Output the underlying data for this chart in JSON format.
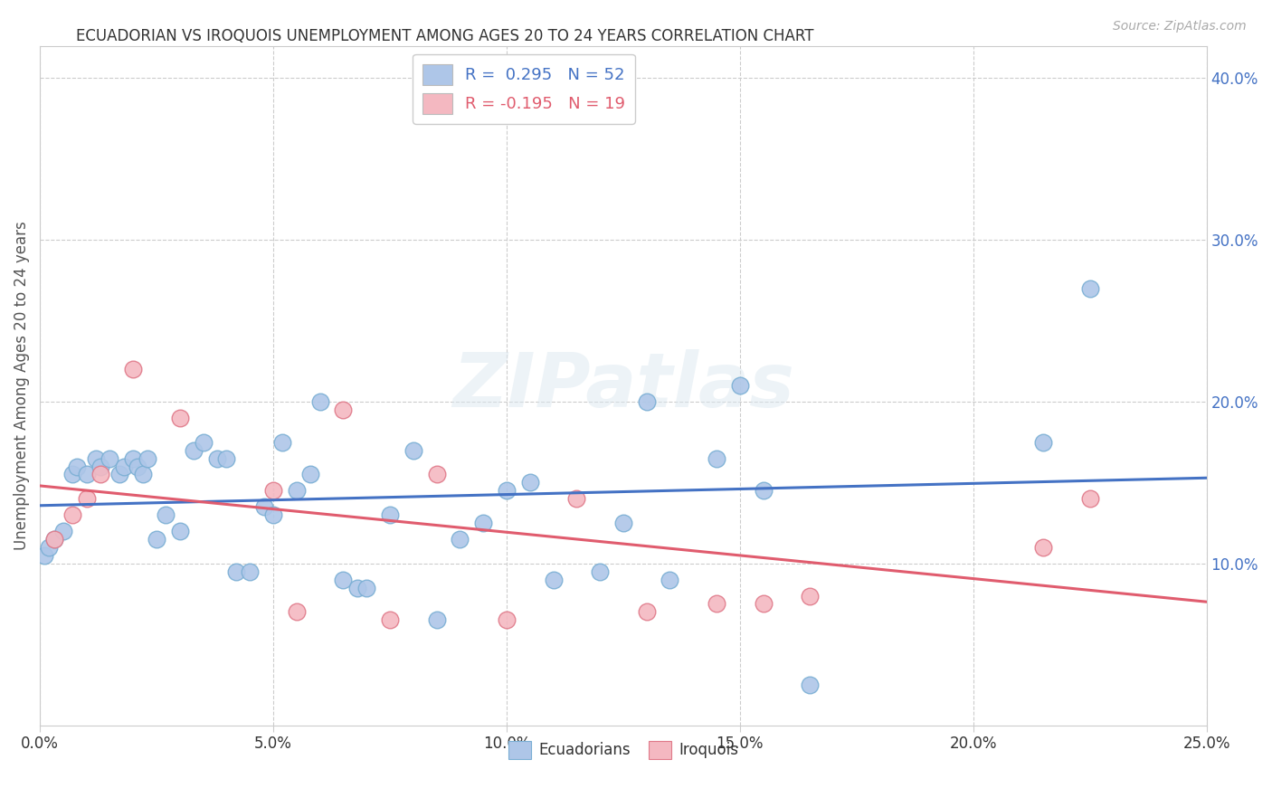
{
  "title": "ECUADORIAN VS IROQUOIS UNEMPLOYMENT AMONG AGES 20 TO 24 YEARS CORRELATION CHART",
  "source": "Source: ZipAtlas.com",
  "ylabel": "Unemployment Among Ages 20 to 24 years",
  "xlim": [
    0.0,
    0.25
  ],
  "ylim": [
    0.0,
    0.42
  ],
  "x_ticks": [
    0.0,
    0.05,
    0.1,
    0.15,
    0.2,
    0.25
  ],
  "x_tick_labels": [
    "0.0%",
    "5.0%",
    "10.0%",
    "15.0%",
    "20.0%",
    "25.0%"
  ],
  "y_ticks_right": [
    0.1,
    0.2,
    0.3,
    0.4
  ],
  "y_tick_labels_right": [
    "10.0%",
    "20.0%",
    "30.0%",
    "40.0%"
  ],
  "legend_entries": [
    {
      "label": "R =  0.295   N = 52",
      "facecolor": "#aec6e8",
      "text_color": "#4472c4"
    },
    {
      "label": "R = -0.195   N = 19",
      "facecolor": "#f4b8c1",
      "text_color": "#e05c6e"
    }
  ],
  "ecuadorians": {
    "facecolor": "#aec6e8",
    "edgecolor": "#7bafd4",
    "line_color": "#4472c4",
    "x": [
      0.001,
      0.002,
      0.003,
      0.005,
      0.007,
      0.008,
      0.01,
      0.012,
      0.013,
      0.015,
      0.017,
      0.018,
      0.02,
      0.021,
      0.022,
      0.023,
      0.025,
      0.027,
      0.03,
      0.033,
      0.035,
      0.038,
      0.04,
      0.042,
      0.045,
      0.048,
      0.05,
      0.052,
      0.055,
      0.058,
      0.06,
      0.065,
      0.068,
      0.07,
      0.075,
      0.08,
      0.085,
      0.09,
      0.095,
      0.1,
      0.105,
      0.11,
      0.12,
      0.125,
      0.13,
      0.135,
      0.145,
      0.15,
      0.155,
      0.165,
      0.215,
      0.225
    ],
    "y": [
      0.105,
      0.11,
      0.115,
      0.12,
      0.155,
      0.16,
      0.155,
      0.165,
      0.16,
      0.165,
      0.155,
      0.16,
      0.165,
      0.16,
      0.155,
      0.165,
      0.115,
      0.13,
      0.12,
      0.17,
      0.175,
      0.165,
      0.165,
      0.095,
      0.095,
      0.135,
      0.13,
      0.175,
      0.145,
      0.155,
      0.2,
      0.09,
      0.085,
      0.085,
      0.13,
      0.17,
      0.065,
      0.115,
      0.125,
      0.145,
      0.15,
      0.09,
      0.095,
      0.125,
      0.2,
      0.09,
      0.165,
      0.21,
      0.145,
      0.025,
      0.175,
      0.27
    ]
  },
  "iroquois": {
    "facecolor": "#f4b8c1",
    "edgecolor": "#e07a8a",
    "line_color": "#e05c6e",
    "x": [
      0.003,
      0.007,
      0.01,
      0.013,
      0.02,
      0.03,
      0.05,
      0.055,
      0.065,
      0.075,
      0.085,
      0.1,
      0.115,
      0.13,
      0.145,
      0.155,
      0.165,
      0.215,
      0.225
    ],
    "y": [
      0.115,
      0.13,
      0.14,
      0.155,
      0.22,
      0.19,
      0.145,
      0.07,
      0.195,
      0.065,
      0.155,
      0.065,
      0.14,
      0.07,
      0.075,
      0.075,
      0.08,
      0.11,
      0.14
    ]
  },
  "background_color": "#ffffff",
  "grid_color": "#cccccc",
  "watermark": "ZIPatlas",
  "marker_size": 180
}
